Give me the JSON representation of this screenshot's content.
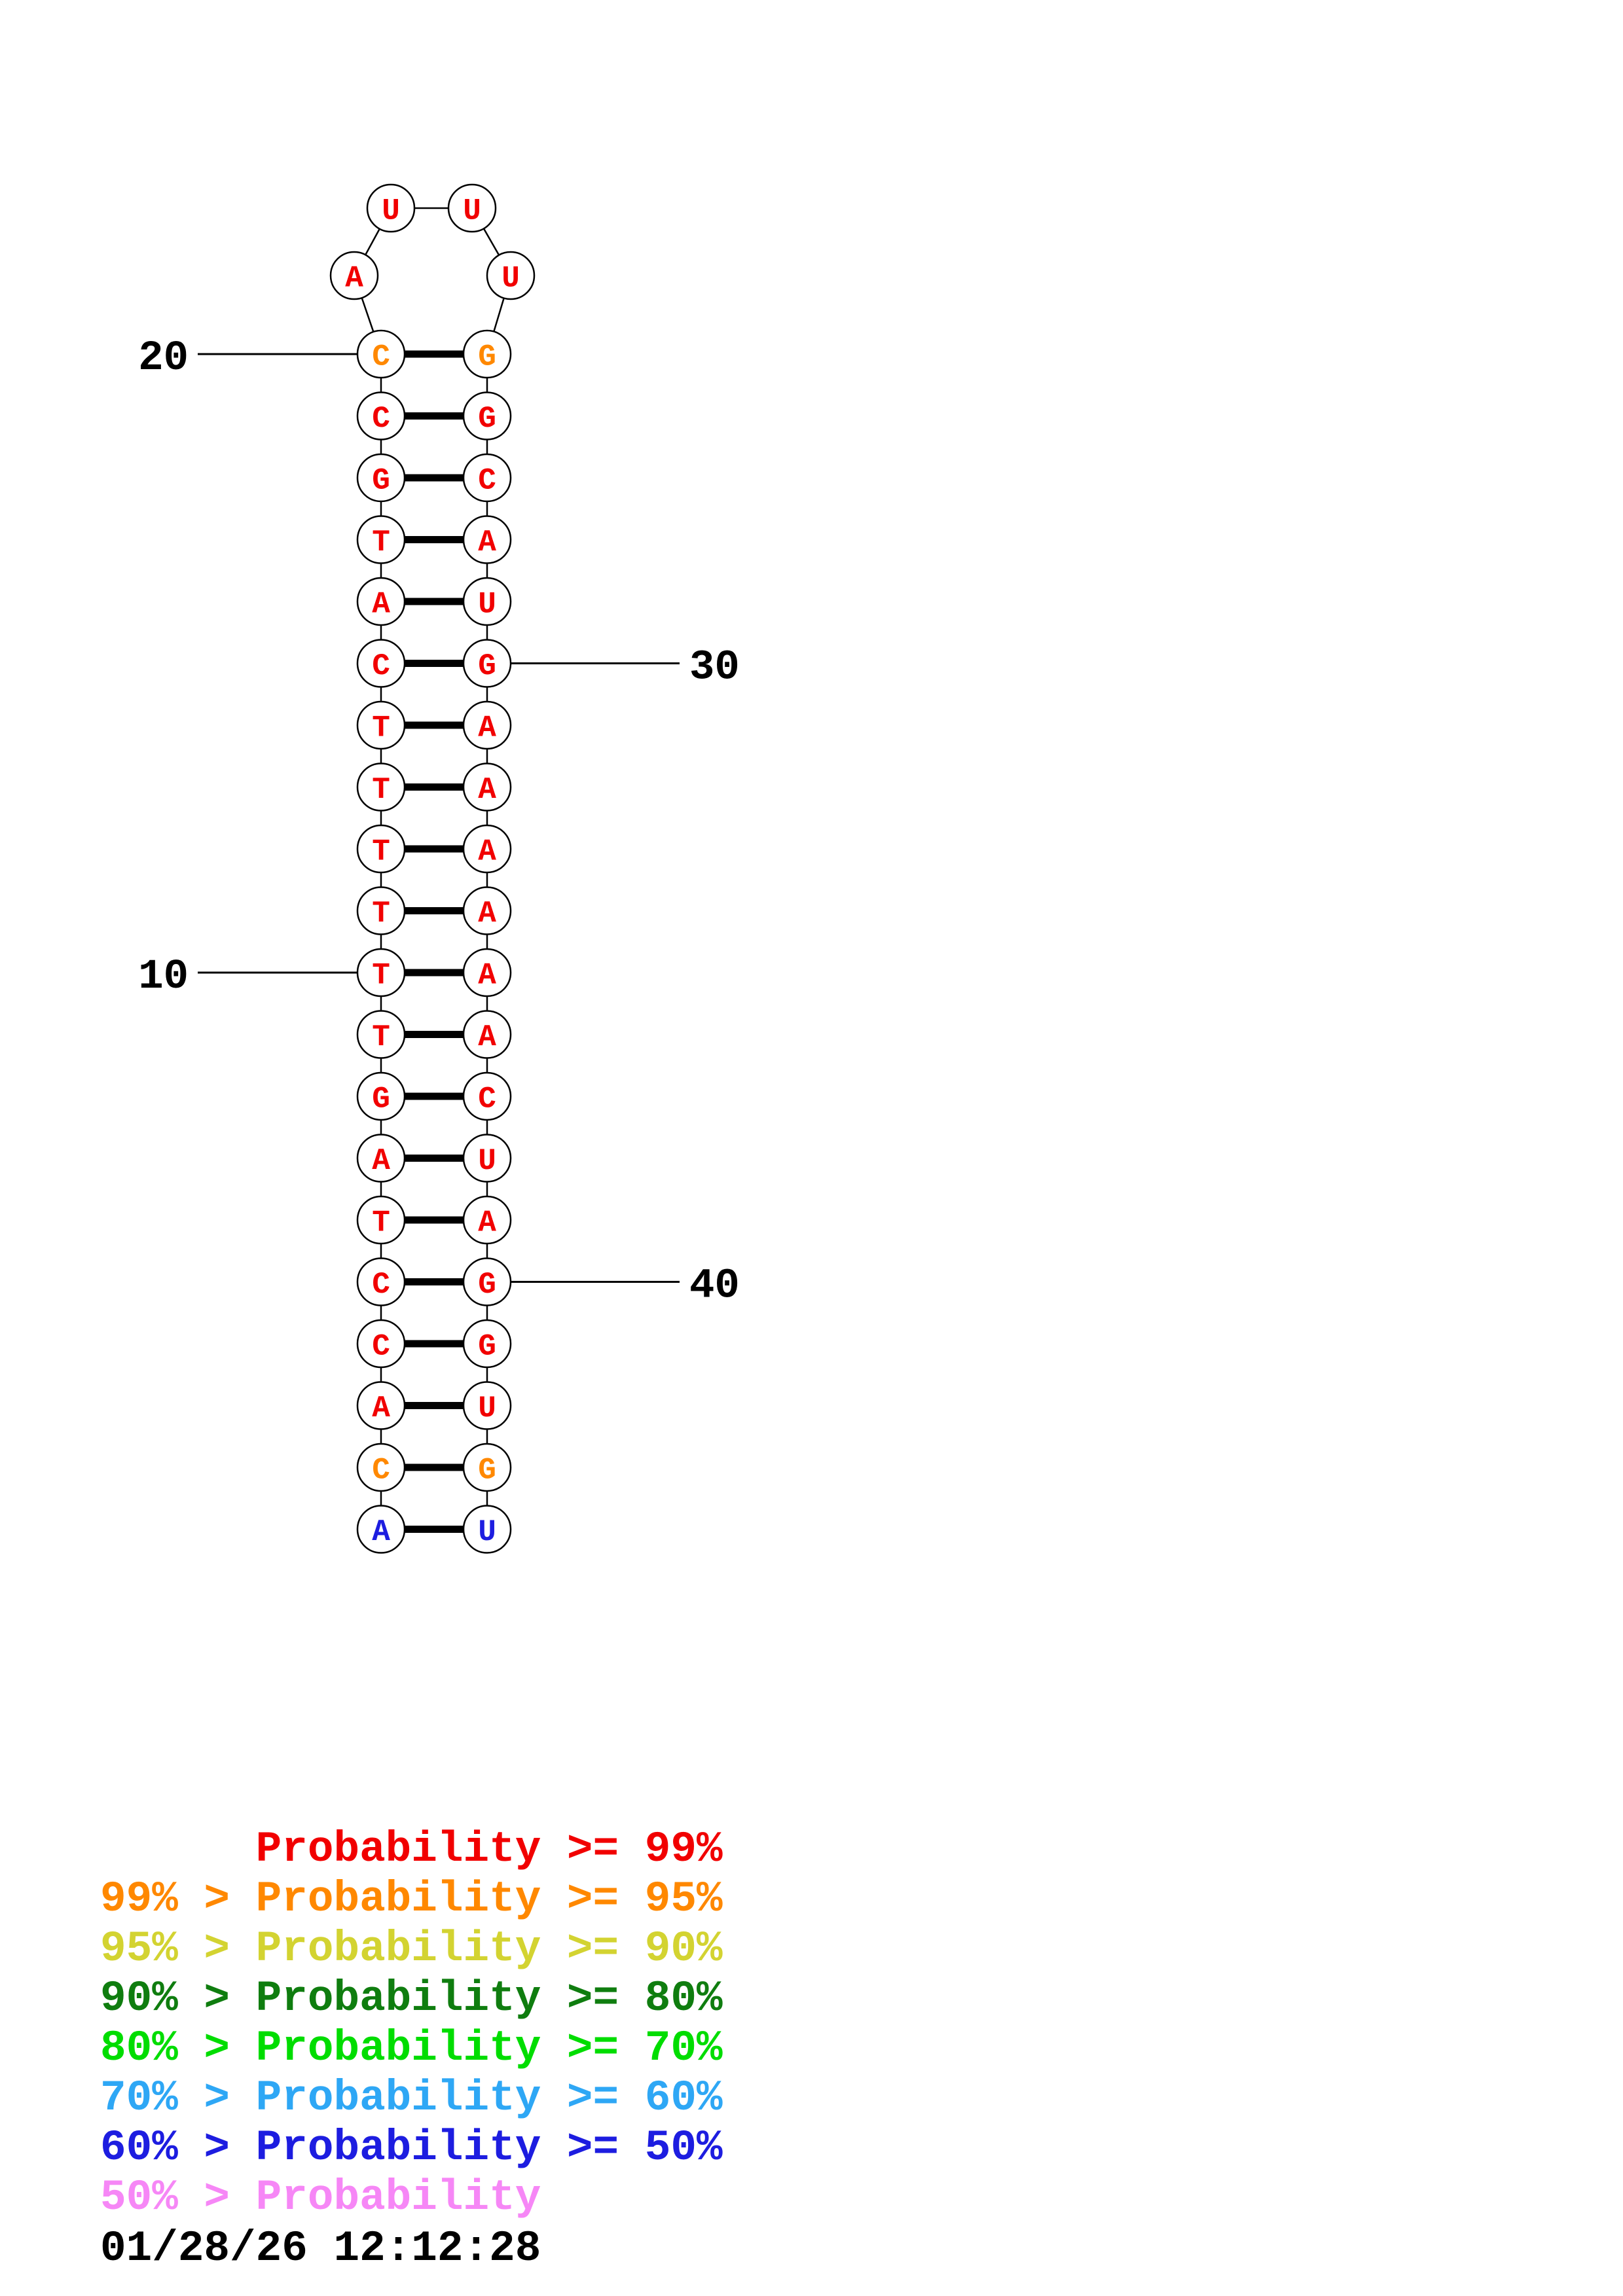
{
  "colors": {
    "ink": "#000000",
    "background": "#ffffff",
    "p99": "#f10000",
    "p95": "#ff8800",
    "p90": "#d3d331",
    "p80": "#0f7d0f",
    "p70": "#00dd00",
    "p60": "#2ea7f5",
    "p50": "#1d1de0",
    "below50": "#f687f6"
  },
  "chart_data": {
    "type": "rna-secondary-structure",
    "description": "Hairpin stem-loop drawing with base-pair probability coloring; bases shown in circles, thick lines are base pairs, thin lines are backbone links",
    "stem_pairs": [
      {
        "left": "C",
        "right": "G",
        "left_prob": "p95",
        "right_prob": "p95"
      },
      {
        "left": "C",
        "right": "G",
        "left_prob": "p99",
        "right_prob": "p99"
      },
      {
        "left": "G",
        "right": "C",
        "left_prob": "p99",
        "right_prob": "p99"
      },
      {
        "left": "T",
        "right": "A",
        "left_prob": "p99",
        "right_prob": "p99"
      },
      {
        "left": "A",
        "right": "U",
        "left_prob": "p99",
        "right_prob": "p99"
      },
      {
        "left": "C",
        "right": "G",
        "left_prob": "p99",
        "right_prob": "p99"
      },
      {
        "left": "T",
        "right": "A",
        "left_prob": "p99",
        "right_prob": "p99"
      },
      {
        "left": "T",
        "right": "A",
        "left_prob": "p99",
        "right_prob": "p99"
      },
      {
        "left": "T",
        "right": "A",
        "left_prob": "p99",
        "right_prob": "p99"
      },
      {
        "left": "T",
        "right": "A",
        "left_prob": "p99",
        "right_prob": "p99"
      },
      {
        "left": "T",
        "right": "A",
        "left_prob": "p99",
        "right_prob": "p99"
      },
      {
        "left": "T",
        "right": "A",
        "left_prob": "p99",
        "right_prob": "p99"
      },
      {
        "left": "G",
        "right": "C",
        "left_prob": "p99",
        "right_prob": "p99"
      },
      {
        "left": "A",
        "right": "U",
        "left_prob": "p99",
        "right_prob": "p99"
      },
      {
        "left": "T",
        "right": "A",
        "left_prob": "p99",
        "right_prob": "p99"
      },
      {
        "left": "C",
        "right": "G",
        "left_prob": "p99",
        "right_prob": "p99"
      },
      {
        "left": "C",
        "right": "G",
        "left_prob": "p99",
        "right_prob": "p99"
      },
      {
        "left": "A",
        "right": "U",
        "left_prob": "p99",
        "right_prob": "p99"
      },
      {
        "left": "C",
        "right": "G",
        "left_prob": "p95",
        "right_prob": "p95"
      },
      {
        "left": "A",
        "right": "U",
        "left_prob": "p50",
        "right_prob": "p50"
      }
    ],
    "hairpin_loop": [
      {
        "base": "A",
        "prob": "p99"
      },
      {
        "base": "U",
        "prob": "p99"
      },
      {
        "base": "U",
        "prob": "p99"
      },
      {
        "base": "U",
        "prob": "p99"
      }
    ],
    "position_labels": [
      {
        "text": "10",
        "side": "left",
        "pair_index": 10
      },
      {
        "text": "20",
        "side": "left",
        "pair_index": 0
      },
      {
        "text": "30",
        "side": "right",
        "pair_index": 5
      },
      {
        "text": "40",
        "side": "right",
        "pair_index": 15
      }
    ]
  },
  "legend": {
    "rows": [
      {
        "text": "      Probability >= 99%",
        "prob": "p99"
      },
      {
        "text": "99% > Probability >= 95%",
        "prob": "p95"
      },
      {
        "text": "95% > Probability >= 90%",
        "prob": "p90"
      },
      {
        "text": "90% > Probability >= 80%",
        "prob": "p80"
      },
      {
        "text": "80% > Probability >= 70%",
        "prob": "p70"
      },
      {
        "text": "70% > Probability >= 60%",
        "prob": "p60"
      },
      {
        "text": "60% > Probability >= 50%",
        "prob": "p50"
      },
      {
        "text": "50% > Probability",
        "prob": "below50"
      }
    ],
    "timestamp": "01/28/26 12:12:28"
  }
}
